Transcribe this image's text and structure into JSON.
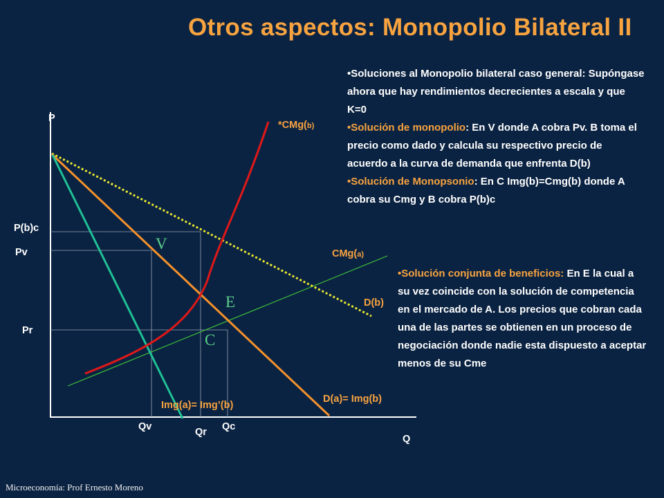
{
  "title": "Otros aspectos: Monopolio Bilateral II",
  "axes": {
    "y_label": "P",
    "x_label": "Q"
  },
  "price_labels": {
    "pbc": "P(b)c",
    "pv": "Pv",
    "pr": "Pr"
  },
  "quantity_labels": {
    "qv": "Qv",
    "qr": "Qr",
    "qc": "Qc"
  },
  "curves": {
    "cmgb": {
      "main": "*CMg(",
      "sub": "b)"
    },
    "cmga": {
      "main": "CMg(",
      "sub": "a)"
    },
    "db": "D(b)",
    "da": "D(a)= Img(b)",
    "imga": "Img(a)= Img’(b)"
  },
  "points": {
    "v": "V",
    "e": "E",
    "c": "C"
  },
  "bullets_top": [
    {
      "highlight": "",
      "text": "Soluciones al Monopolio bilateral caso general: Supóngase ahora que hay rendimientos decrecientes a escala y que K=0"
    },
    {
      "highlight": "Solución de monopolio",
      "text": ": En V donde A cobra Pv. B toma el precio como dado y calcula su respectivo precio de acuerdo a la curva de demanda que enfrenta D(b)"
    },
    {
      "highlight": "Solución de Monopsonio",
      "text": ": En C Img(b)=Cmg(b) donde A cobra su Cmg y B cobra P(b)c"
    }
  ],
  "bullets_bottom": [
    {
      "highlight": "Solución conjunta de beneficios:",
      "text": " En E la cual a su vez coincide con la solución de competencia en el mercado de A. Los precios que cobran cada una de las partes se obtienen en un proceso de negociación donde nadie esta dispuesto a aceptar menos de su Cme"
    }
  ],
  "footer": "Microeconomía:  Prof Ernesto Moreno",
  "colors": {
    "background": "#0b2342",
    "title": "#f7a340",
    "orange_curve": "#f5922b",
    "red_curve": "#e01818",
    "teal_curve": "#1fc196",
    "green_line": "#3dbf3a",
    "yellow_dotted": "#e8e830"
  }
}
